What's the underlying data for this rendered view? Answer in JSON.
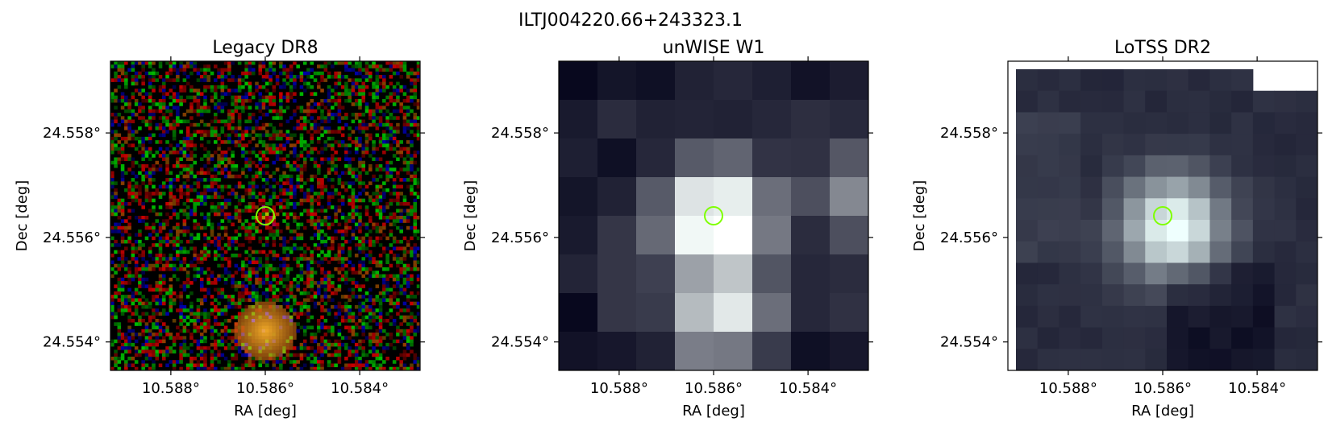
{
  "figure": {
    "suptitle": "ILTJ004220.66+243323.1",
    "marker_color": "#7fff00",
    "panels": [
      {
        "title": "Legacy DR8",
        "survey": "legacy",
        "xlabel": "RA [deg]",
        "ylabel": "Dec [deg]",
        "x_ticks": [
          "10.588°",
          "10.586°",
          "10.584°"
        ],
        "y_ticks": [
          "24.558°",
          "24.556°",
          "24.554°"
        ]
      },
      {
        "title": "unWISE W1",
        "survey": "unwise",
        "xlabel": "RA [deg]",
        "ylabel": "Dec [deg]",
        "x_ticks": [
          "10.588°",
          "10.586°",
          "10.584°"
        ],
        "y_ticks": [
          "24.558°",
          "24.556°",
          "24.554°"
        ]
      },
      {
        "title": "LoTSS DR2",
        "survey": "lotss",
        "xlabel": "RA [deg]",
        "ylabel": "Dec [deg]",
        "x_ticks": [
          "10.588°",
          "10.586°",
          "10.584°"
        ],
        "y_ticks": [
          "24.558°",
          "24.556°",
          "24.554°"
        ]
      }
    ]
  }
}
